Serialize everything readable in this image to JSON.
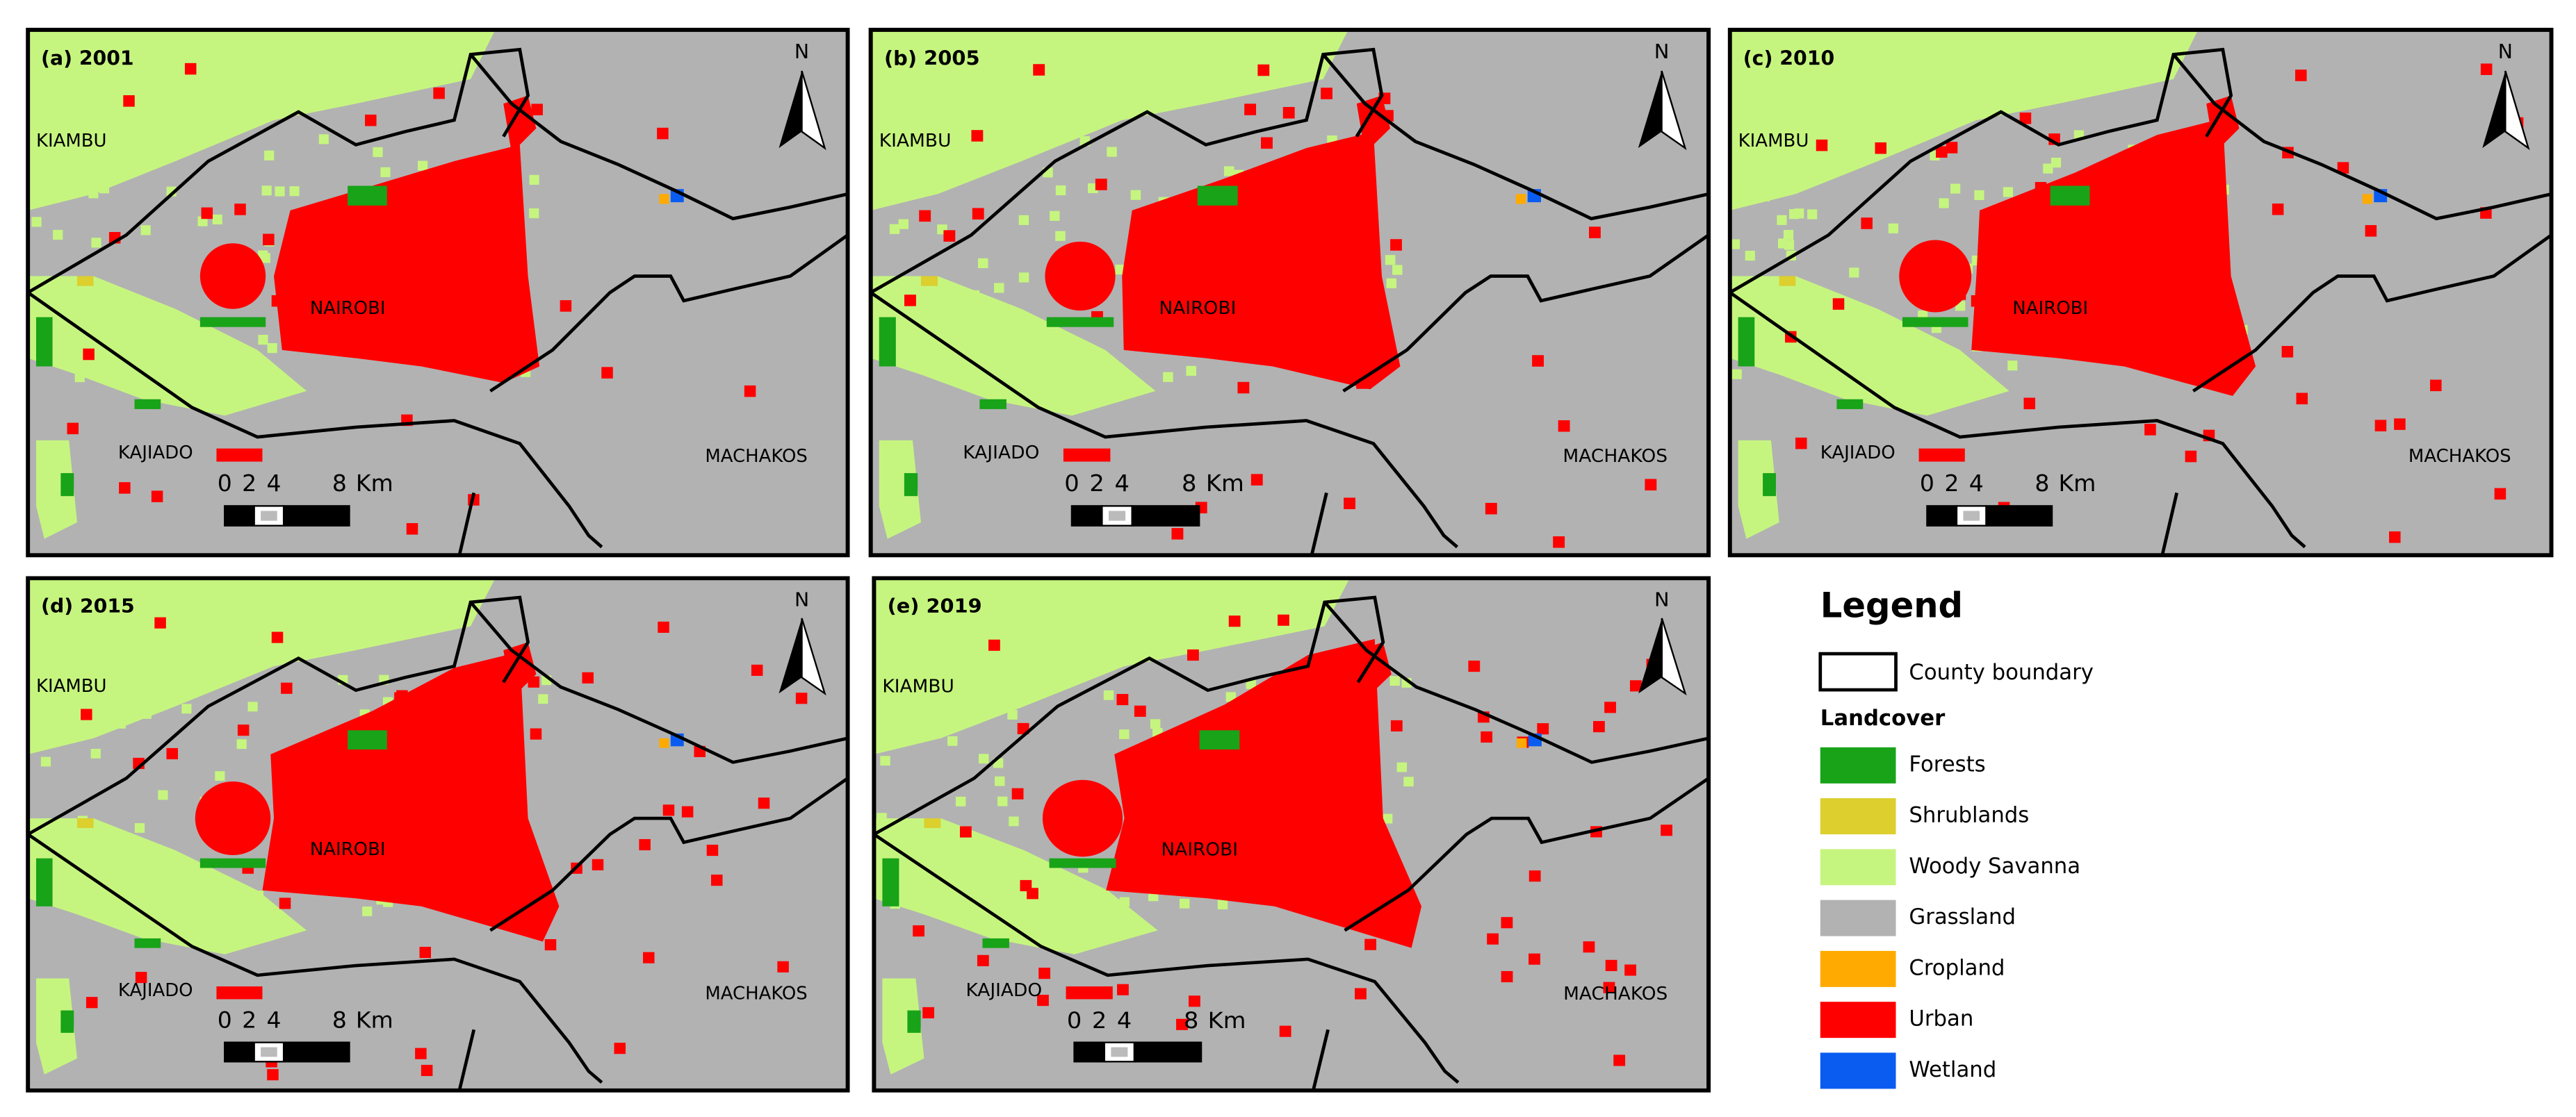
{
  "panels": [
    {
      "label": "(a) 2001",
      "places": [
        "KIAMBU",
        "NAIROBI",
        "KAJIADO",
        "MACHAKOS"
      ],
      "north": "N",
      "scale_ticks": [
        0,
        2,
        4,
        8
      ],
      "scale_unit": "Km"
    },
    {
      "label": "(b) 2005",
      "places": [
        "KIAMBU",
        "NAIROBI",
        "KAJIADO",
        "MACHAKOS"
      ],
      "north": "N",
      "scale_ticks": [
        0,
        2,
        4,
        8
      ],
      "scale_unit": "Km"
    },
    {
      "label": "(c) 2010",
      "places": [
        "KIAMBU",
        "NAIROBI",
        "KAJIADO",
        "MACHAKOS"
      ],
      "north": "N",
      "scale_ticks": [
        0,
        2,
        4,
        8
      ],
      "scale_unit": "Km"
    },
    {
      "label": "(d) 2015",
      "places": [
        "KIAMBU",
        "NAIROBI",
        "KAJIADO",
        "MACHAKOS"
      ],
      "north": "N",
      "scale_ticks": [
        0,
        2,
        4,
        8
      ],
      "scale_unit": "Km"
    },
    {
      "label": "(e) 2019",
      "places": [
        "KIAMBU",
        "NAIROBI",
        "KAJIADO",
        "MACHAKOS"
      ],
      "north": "N",
      "scale_ticks": [
        0,
        2,
        4,
        8
      ],
      "scale_unit": "Km"
    }
  ],
  "legend": {
    "title": "Legend",
    "boundary": "County boundary",
    "subtitle": "Landcover",
    "classes": [
      {
        "name": "Forests",
        "color": "#18a318"
      },
      {
        "name": "Shrublands",
        "color": "#dccf2e"
      },
      {
        "name": "Woody Savanna",
        "color": "#c6f57f"
      },
      {
        "name": "Grassland",
        "color": "#b2b2b2"
      },
      {
        "name": "Cropland",
        "color": "#ffaa00"
      },
      {
        "name": "Urban",
        "color": "#ff0000"
      },
      {
        "name": "Wetland",
        "color": "#0a5cf0"
      }
    ]
  }
}
